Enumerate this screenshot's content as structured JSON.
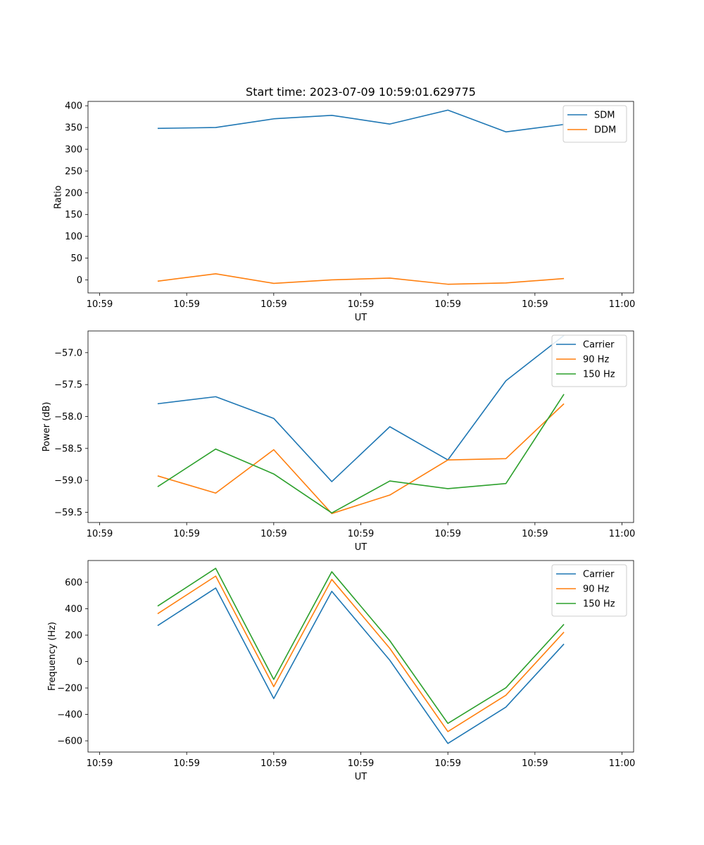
{
  "chart_data": [
    {
      "type": "line",
      "title": "Start time: 2023-07-09 10:59:01.629775",
      "xlabel": "UT",
      "ylabel": "Ratio",
      "xlim": [
        -0.1,
        4.6
      ],
      "ylim": [
        -30,
        410
      ],
      "x": [
        0.5,
        1.0,
        1.5,
        2.0,
        2.5,
        3.0,
        3.5,
        4.0
      ],
      "xticks": [
        0.0,
        0.75,
        1.5,
        2.25,
        3.0,
        3.75,
        4.5
      ],
      "xtick_labels": [
        "10:59",
        "10:59",
        "10:59",
        "10:59",
        "10:59",
        "10:59",
        "11:00"
      ],
      "yticks": [
        0,
        50,
        100,
        150,
        200,
        250,
        300,
        350,
        400
      ],
      "ytick_labels": [
        "0",
        "50",
        "100",
        "150",
        "200",
        "250",
        "300",
        "350",
        "400"
      ],
      "legend_position": "top-right",
      "series": [
        {
          "name": "SDM",
          "color": "#1f77b4",
          "values": [
            348,
            350,
            370,
            378,
            358,
            390,
            340,
            357
          ]
        },
        {
          "name": "DDM",
          "color": "#ff7f0e",
          "values": [
            -3,
            14,
            -8,
            0,
            4,
            -10,
            -7,
            3
          ]
        }
      ]
    },
    {
      "type": "line",
      "title": "",
      "xlabel": "UT",
      "ylabel": "Power (dB)",
      "xlim": [
        -0.1,
        4.6
      ],
      "ylim": [
        -59.66,
        -56.66
      ],
      "x": [
        0.5,
        1.0,
        1.5,
        2.0,
        2.5,
        3.0,
        3.5,
        4.0
      ],
      "xticks": [
        0.0,
        0.75,
        1.5,
        2.25,
        3.0,
        3.75,
        4.5
      ],
      "xtick_labels": [
        "10:59",
        "10:59",
        "10:59",
        "10:59",
        "10:59",
        "10:59",
        "11:00"
      ],
      "yticks": [
        -59.5,
        -59.0,
        -58.5,
        -58.0,
        -57.5,
        -57.0
      ],
      "ytick_labels": [
        "−59.5",
        "−59.0",
        "−58.5",
        "−58.0",
        "−57.5",
        "−57.0"
      ],
      "legend_position": "top-right",
      "series": [
        {
          "name": "Carrier",
          "color": "#1f77b4",
          "values": [
            -57.8,
            -57.69,
            -58.03,
            -59.02,
            -58.16,
            -58.68,
            -57.44,
            -56.73
          ]
        },
        {
          "name": "90 Hz",
          "color": "#ff7f0e",
          "values": [
            -58.93,
            -59.2,
            -58.52,
            -59.52,
            -59.23,
            -58.68,
            -58.66,
            -57.8
          ]
        },
        {
          "name": "150 Hz",
          "color": "#2ca02c",
          "values": [
            -59.1,
            -58.51,
            -58.9,
            -59.51,
            -59.01,
            -59.13,
            -59.05,
            -57.65
          ]
        }
      ]
    },
    {
      "type": "line",
      "title": "",
      "xlabel": "UT",
      "ylabel": "Frequency (Hz)",
      "xlim": [
        -0.1,
        4.6
      ],
      "ylim": [
        -685,
        765
      ],
      "x": [
        0.5,
        1.0,
        1.5,
        2.0,
        2.5,
        3.0,
        3.5,
        4.0
      ],
      "xticks": [
        0.0,
        0.75,
        1.5,
        2.25,
        3.0,
        3.75,
        4.5
      ],
      "xtick_labels": [
        "10:59",
        "10:59",
        "10:59",
        "10:59",
        "10:59",
        "10:59",
        "11:00"
      ],
      "yticks": [
        -600,
        -400,
        -200,
        0,
        200,
        400,
        600
      ],
      "ytick_labels": [
        "−600",
        "−400",
        "−200",
        "0",
        "200",
        "400",
        "600"
      ],
      "legend_position": "top-right",
      "series": [
        {
          "name": "Carrier",
          "color": "#1f77b4",
          "values": [
            272,
            557,
            -280,
            532,
            10,
            -620,
            -345,
            133
          ]
        },
        {
          "name": "90 Hz",
          "color": "#ff7f0e",
          "values": [
            362,
            647,
            -190,
            622,
            100,
            -530,
            -255,
            223
          ]
        },
        {
          "name": "150 Hz",
          "color": "#2ca02c",
          "values": [
            420,
            706,
            -135,
            680,
            158,
            -468,
            -198,
            282
          ]
        }
      ]
    }
  ]
}
